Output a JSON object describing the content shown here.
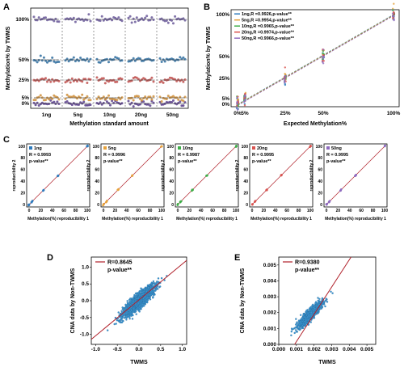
{
  "chart_data": [
    {
      "panel": "A",
      "type": "scatter",
      "ylabel": "Methylation% by TWMS",
      "xlabel": "Methylation standard amount",
      "categories": [
        "1ng",
        "5ng",
        "10ng",
        "20ng",
        "50ng"
      ],
      "y_ticks": [
        "0%",
        "5%",
        "25%",
        "50%",
        "100%"
      ],
      "y_tick_values": [
        0,
        5,
        25,
        50,
        100
      ],
      "series": [
        {
          "values": [
            0,
            0,
            0,
            0,
            0
          ],
          "color": "#5b3f8c"
        },
        {
          "values": [
            5,
            5,
            5,
            5,
            5
          ],
          "color": "#cf8f3b"
        },
        {
          "values": [
            25,
            25,
            25,
            25,
            25
          ],
          "color": "#c0504d"
        },
        {
          "values": [
            50,
            50,
            50,
            50,
            50
          ],
          "color": "#2f6d9f"
        },
        {
          "values": [
            100,
            100,
            100,
            100,
            100
          ],
          "color": "#6b5b9a"
        }
      ]
    },
    {
      "panel": "B",
      "type": "scatter",
      "ylabel": "Methylation% by TWMS",
      "xlabel": "Expected Methylation%",
      "x_ticks": [
        "0%",
        "5%",
        "25%",
        "50%",
        "100%"
      ],
      "y_ticks": [
        "0%",
        "5%",
        "25%",
        "50%",
        "100%"
      ],
      "tick_values": [
        0,
        5,
        25,
        50,
        100
      ],
      "series": [
        {
          "name": "1ng,R =0.9926,p-value**",
          "color": "#2f7bbd"
        },
        {
          "name": "5ng,R =0.9954,p-value**",
          "color": "#e6a23c"
        },
        {
          "name": "10ng,R =0.9965,p-value**",
          "color": "#3fae49"
        },
        {
          "name": "20ng,R =0.9974,p-value**",
          "color": "#d9534f"
        },
        {
          "name": "50ng,R =0.9966,p-value**",
          "color": "#8e6bbf"
        }
      ]
    },
    {
      "panel": "C",
      "type": "scatter",
      "xlabel": "Methylation(%) reproducibility 1",
      "ylabel": "reproducibility 2",
      "x_ticks": [
        0,
        20,
        40,
        60,
        80,
        100
      ],
      "y_ticks": [
        0,
        20,
        40,
        60,
        80,
        100
      ],
      "panels": [
        {
          "name": "1ng",
          "r": "R = 0.9993",
          "p": "p-value**",
          "color": "#2f7bbd"
        },
        {
          "name": "5ng",
          "r": "R = 0.9996",
          "p": "p-value**",
          "color": "#e6a23c"
        },
        {
          "name": "10ng",
          "r": "R = 0.9987",
          "p": "p-value**",
          "color": "#3fae49"
        },
        {
          "name": "20ng",
          "r": "R = 0.9995",
          "p": "p-value**",
          "color": "#d9534f"
        },
        {
          "name": "50ng",
          "r": "R = 0.9995",
          "p": "p-value**",
          "color": "#8e6bbf"
        }
      ]
    },
    {
      "panel": "D",
      "type": "scatter",
      "xlabel": "TWMS",
      "ylabel": "CNA data by Non-TWMS",
      "r": "R=0.8645",
      "p": "p-value**",
      "x_ticks": [
        "-1.0",
        "-0.5",
        "0.0",
        "0.5",
        "1.0"
      ],
      "y_ticks": [
        "-1.0",
        "-0.5",
        "0.0",
        "0.5",
        "1.0"
      ],
      "xlim": [
        -1.1,
        1.1
      ],
      "ylim": [
        -1.3,
        1.3
      ]
    },
    {
      "panel": "E",
      "type": "scatter",
      "xlabel": "TWMS",
      "ylabel": "CNA data by Non-TWMS",
      "r": "R=0.9380",
      "p": "p-value**",
      "x_ticks": [
        "0.000",
        "0.001",
        "0.002",
        "0.003",
        "0.004",
        "0.005"
      ],
      "y_ticks": [
        "0.000",
        "0.001",
        "0.002",
        "0.003",
        "0.004",
        "0.005"
      ],
      "xlim": [
        0,
        0.0055
      ],
      "ylim": [
        0,
        0.0055
      ]
    }
  ],
  "labels": {
    "A": "A",
    "B": "B",
    "C": "C",
    "D": "D",
    "E": "E"
  },
  "colors": {
    "line": "#b0202a",
    "scatter": "#3a95d0",
    "dark": "#1f4f7a"
  }
}
